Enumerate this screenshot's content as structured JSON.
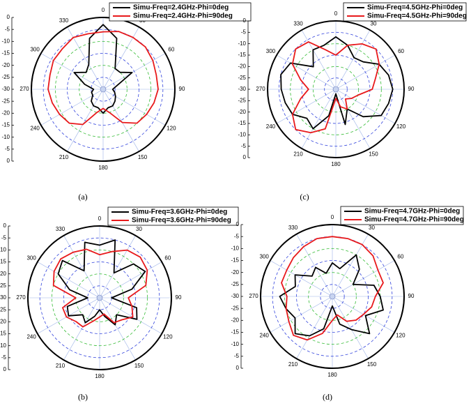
{
  "chart_data": [
    {
      "type": "polar",
      "caption": "(a)",
      "theta": [
        0,
        15,
        30,
        45,
        60,
        75,
        90,
        105,
        120,
        135,
        150,
        165,
        180,
        195,
        210,
        225,
        240,
        255,
        270,
        285,
        300,
        315,
        330,
        345
      ],
      "series": [
        {
          "name": "Simu-Freq=2.4GHz-Phi=0deg",
          "color": "#000000",
          "values": [
            -3,
            -8,
            -20,
            -20,
            -16,
            -24,
            -26,
            -25,
            -24,
            -23,
            -22,
            -22,
            -20,
            -22,
            -22,
            -23,
            -25,
            -25,
            -26,
            -22,
            -16,
            -20,
            -18,
            -8
          ]
        },
        {
          "name": "Simu-Freq=2.4GHz-Phi=90deg",
          "color": "#e8191b",
          "values": [
            -6,
            -5,
            -5,
            -5,
            -6,
            -7,
            -7,
            -8,
            -9,
            -10,
            -14,
            -20,
            -22,
            -20,
            -13,
            -10,
            -9,
            -8,
            -7,
            -7,
            -6,
            -6,
            -5,
            -6
          ]
        }
      ],
      "rlim": [
        -30,
        0
      ],
      "rticks": [
        -30,
        -25,
        -20,
        -15,
        -10,
        -5,
        0
      ],
      "thetaticks": [
        0,
        30,
        60,
        90,
        120,
        150,
        180,
        210,
        240,
        270,
        300,
        330
      ]
    },
    {
      "type": "polar",
      "caption": "(c)",
      "theta": [
        0,
        15,
        30,
        45,
        60,
        75,
        90,
        105,
        120,
        135,
        150,
        165,
        180,
        195,
        210,
        225,
        240,
        255,
        270,
        285,
        300,
        315,
        330,
        345
      ],
      "series": [
        {
          "name": "Simu-Freq=4.5GHz-Phi=0deg",
          "color": "#000000",
          "values": [
            -7,
            -10,
            -14,
            -13,
            -8,
            -6,
            -5,
            -6,
            -7,
            -13,
            -20,
            -14,
            -28,
            -18,
            -10,
            -12,
            -8,
            -7,
            -6,
            -5,
            -7,
            -16,
            -10,
            -10
          ]
        },
        {
          "name": "Simu-Freq=4.5GHz-Phi=90deg",
          "color": "#e8191b",
          "values": [
            -15,
            -10,
            -7,
            -5,
            -8,
            -12,
            -14,
            -20,
            -22,
            -24,
            -20,
            -22,
            -26,
            -12,
            -8,
            -5,
            -8,
            -14,
            -18,
            -14,
            -8,
            -5,
            -6,
            -12
          ]
        }
      ],
      "rlim": [
        -30,
        0
      ],
      "rticks": [
        -30,
        -25,
        -20,
        -15,
        -10,
        -5,
        0
      ],
      "thetaticks": [
        0,
        30,
        60,
        90,
        120,
        150,
        180,
        210,
        240,
        270,
        300,
        330
      ]
    },
    {
      "type": "polar",
      "caption": "(b)",
      "theta": [
        0,
        15,
        30,
        45,
        60,
        75,
        90,
        105,
        120,
        135,
        150,
        165,
        180,
        195,
        210,
        225,
        240,
        255,
        270,
        285,
        300,
        315,
        330,
        345
      ],
      "series": [
        {
          "name": "Simu-Freq=3.6GHz-Phi=0deg",
          "color": "#000000",
          "values": [
            -8,
            -5,
            -18,
            -10,
            -8,
            -16,
            -25,
            -14,
            -12,
            -20,
            -17,
            -22,
            -25,
            -22,
            -18,
            -20,
            -15,
            -16,
            -25,
            -17,
            -10,
            -8,
            -17,
            -6
          ]
        },
        {
          "name": "Simu-Freq=3.6GHz-Phi=90deg",
          "color": "#e8191b",
          "values": [
            -12,
            -10,
            -7,
            -6,
            -7,
            -10,
            -18,
            -16,
            -14,
            -17,
            -18,
            -23,
            -22,
            -20,
            -16,
            -16,
            -14,
            -14,
            -20,
            -10,
            -8,
            -7,
            -8,
            -9
          ]
        }
      ],
      "rlim": [
        -30,
        0
      ],
      "rticks": [
        -30,
        -25,
        -20,
        -15,
        -10,
        -5,
        0
      ],
      "thetaticks": [
        0,
        30,
        60,
        90,
        120,
        150,
        180,
        210,
        240,
        270,
        300,
        330
      ]
    },
    {
      "type": "polar",
      "caption": "(d)",
      "theta": [
        0,
        15,
        30,
        45,
        60,
        75,
        90,
        105,
        120,
        135,
        150,
        165,
        180,
        195,
        210,
        225,
        240,
        255,
        270,
        285,
        300,
        315,
        330,
        345
      ],
      "series": [
        {
          "name": "Simu-Freq=4.7GHz-Phi=0deg",
          "color": "#000000",
          "values": [
            -16,
            -18,
            -10,
            -14,
            -20,
            -12,
            -10,
            -8,
            -14,
            -8,
            -14,
            -18,
            -26,
            -16,
            -11,
            -8,
            -12,
            -10,
            -8,
            -14,
            -12,
            -18,
            -16,
            -20
          ]
        },
        {
          "name": "Simu-Freq=4.7GHz-Phi=90deg",
          "color": "#e8191b",
          "values": [
            -5,
            -5,
            -5,
            -6,
            -8,
            -8,
            -12,
            -13,
            -15,
            -16,
            -18,
            -22,
            -20,
            -14,
            -9,
            -7,
            -9,
            -10,
            -11,
            -8,
            -8,
            -7,
            -6,
            -5
          ]
        }
      ],
      "rlim": [
        -30,
        0
      ],
      "rticks": [
        -30,
        -25,
        -20,
        -15,
        -10,
        -5,
        0
      ],
      "thetaticks": [
        0,
        30,
        60,
        90,
        120,
        150,
        180,
        210,
        240,
        270,
        300,
        330
      ]
    }
  ]
}
